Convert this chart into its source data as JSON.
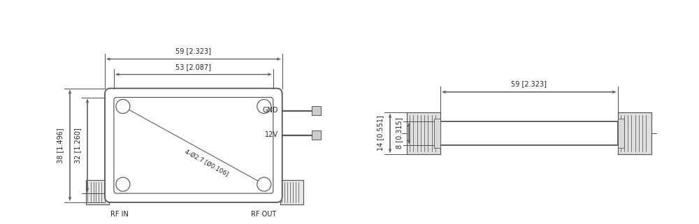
{
  "bg_color": "#ffffff",
  "line_color": "#555555",
  "dim_color": "#555555",
  "text_color": "#222222",
  "font_size": 7.0,
  "small_font": 6.2,
  "labels": {
    "dim_59_top": "59 [2.323]",
    "dim_53": "53 [2.087]",
    "dim_38": "38 [1.496]",
    "dim_32": "32 [1.260]",
    "dim_hole": "4-Ø2.7 [Ø0.106]",
    "gnd": "GND",
    "v12": "12V",
    "rf_in": "RF IN",
    "rf_out": "RF OUT",
    "side_14": "14 [0.551]",
    "side_8": "8 [0.315]",
    "side_59": "59 [2.323]"
  }
}
